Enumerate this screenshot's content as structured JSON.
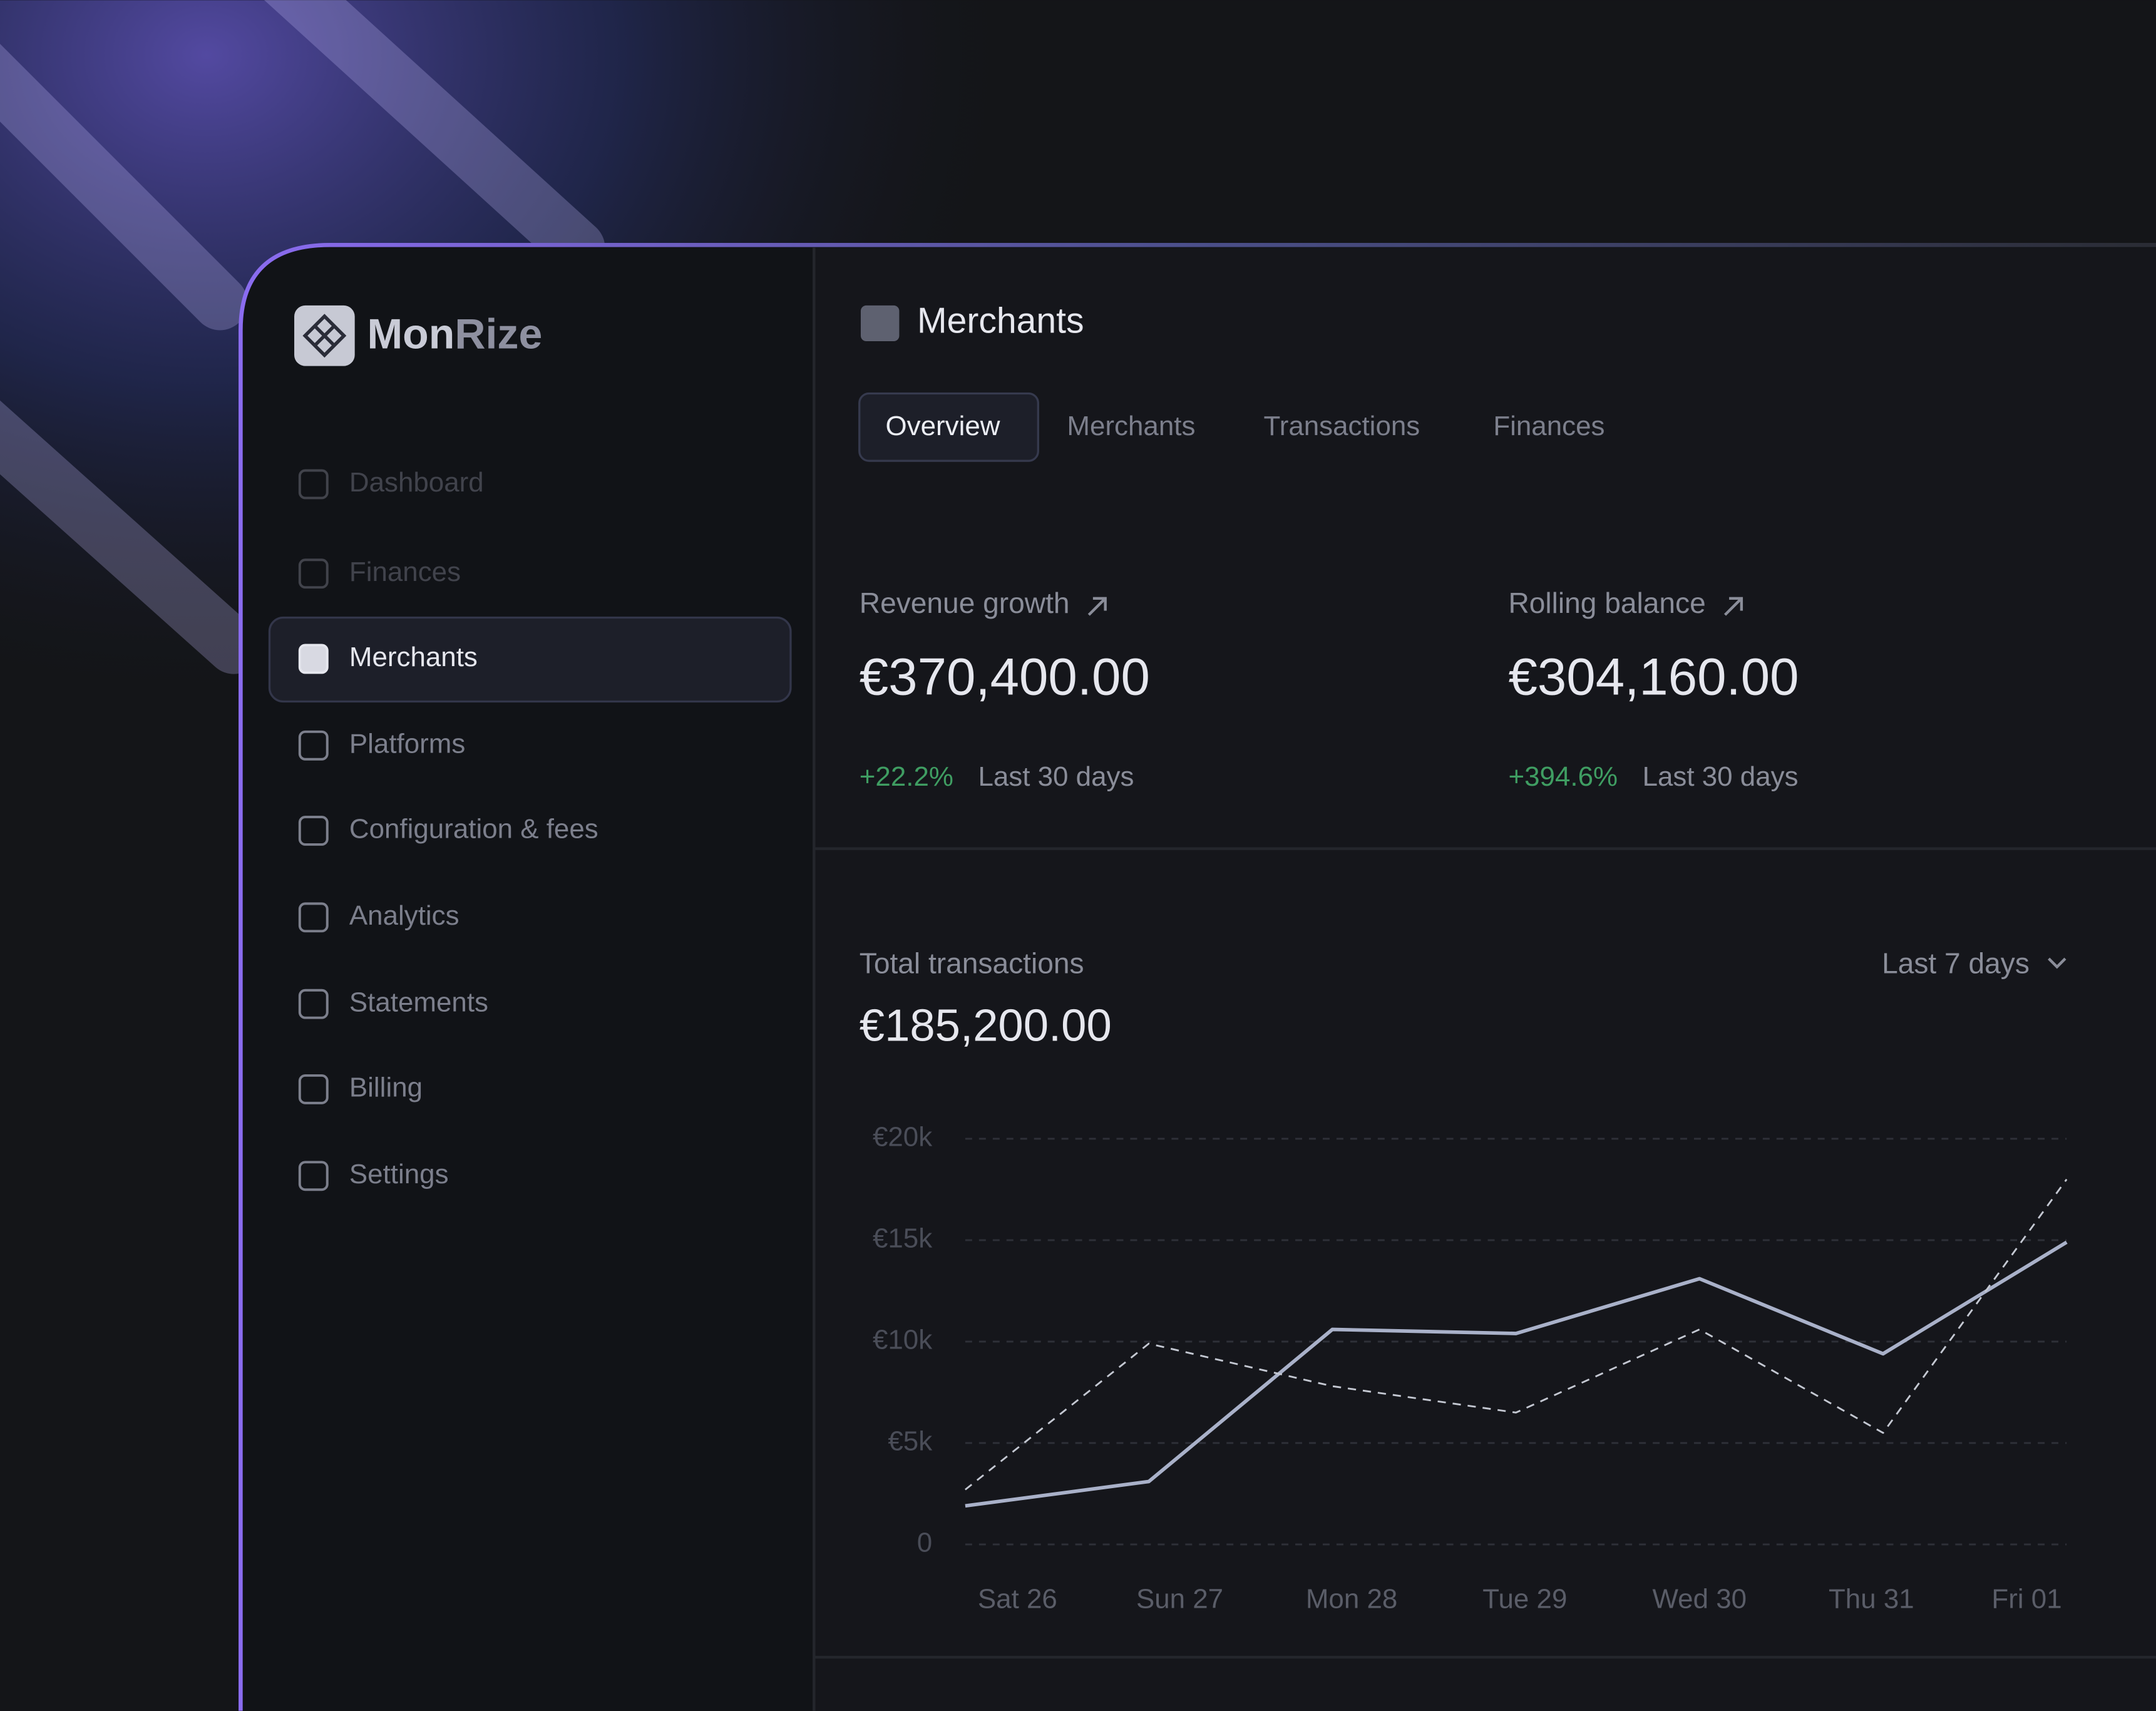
{
  "sidebar": {
    "brand_main": "Mon",
    "brand_accent": "Rize",
    "nav": [
      "Dashboard",
      "Finances",
      "Merchants",
      "Platforms",
      "Configuration & fees",
      "Analytics",
      "Statements",
      "Billing",
      "Settings"
    ],
    "active": 2
  },
  "header": {
    "title": "Merchants",
    "tabs": [
      "Overview",
      "Merchants",
      "Transactions",
      "Finances"
    ],
    "active_tab": 0
  },
  "kpis": [
    {
      "label": "Revenue growth",
      "value": "€370,400.00",
      "change": "+22.2%",
      "period": "Last 30 days"
    },
    {
      "label": "Rolling balance",
      "value": "€304,160.00",
      "change": "+394.6%",
      "period": "Last 30 days"
    }
  ],
  "chart_data": {
    "type": "line",
    "title": "Total transactions",
    "total": "€185,200.00",
    "range_selector": "Last 7 days",
    "categories": [
      "Sat 26",
      "Sun 27",
      "Mon 28",
      "Tue 29",
      "Wed 30",
      "Thu 31",
      "Fri 01"
    ],
    "series": [
      {
        "color": "#a9b1c9",
        "dashed": false,
        "values": [
          1900,
          3100,
          10600,
          10400,
          13100,
          9400,
          14900
        ]
      },
      {
        "color": "#c4c8d2",
        "dashed": true,
        "values": [
          2700,
          9900,
          7800,
          6500,
          10600,
          5500,
          18000
        ]
      }
    ],
    "ylim": [
      0,
      20000
    ],
    "yticks": [
      0,
      {
        "value": 5000,
        "label": "€5k"
      },
      {
        "value": 10000,
        "label": "€10k"
      },
      {
        "value": 15000,
        "label": "€15k"
      },
      {
        "value": 20000,
        "label": "€20k"
      }
    ],
    "grid": true
  }
}
